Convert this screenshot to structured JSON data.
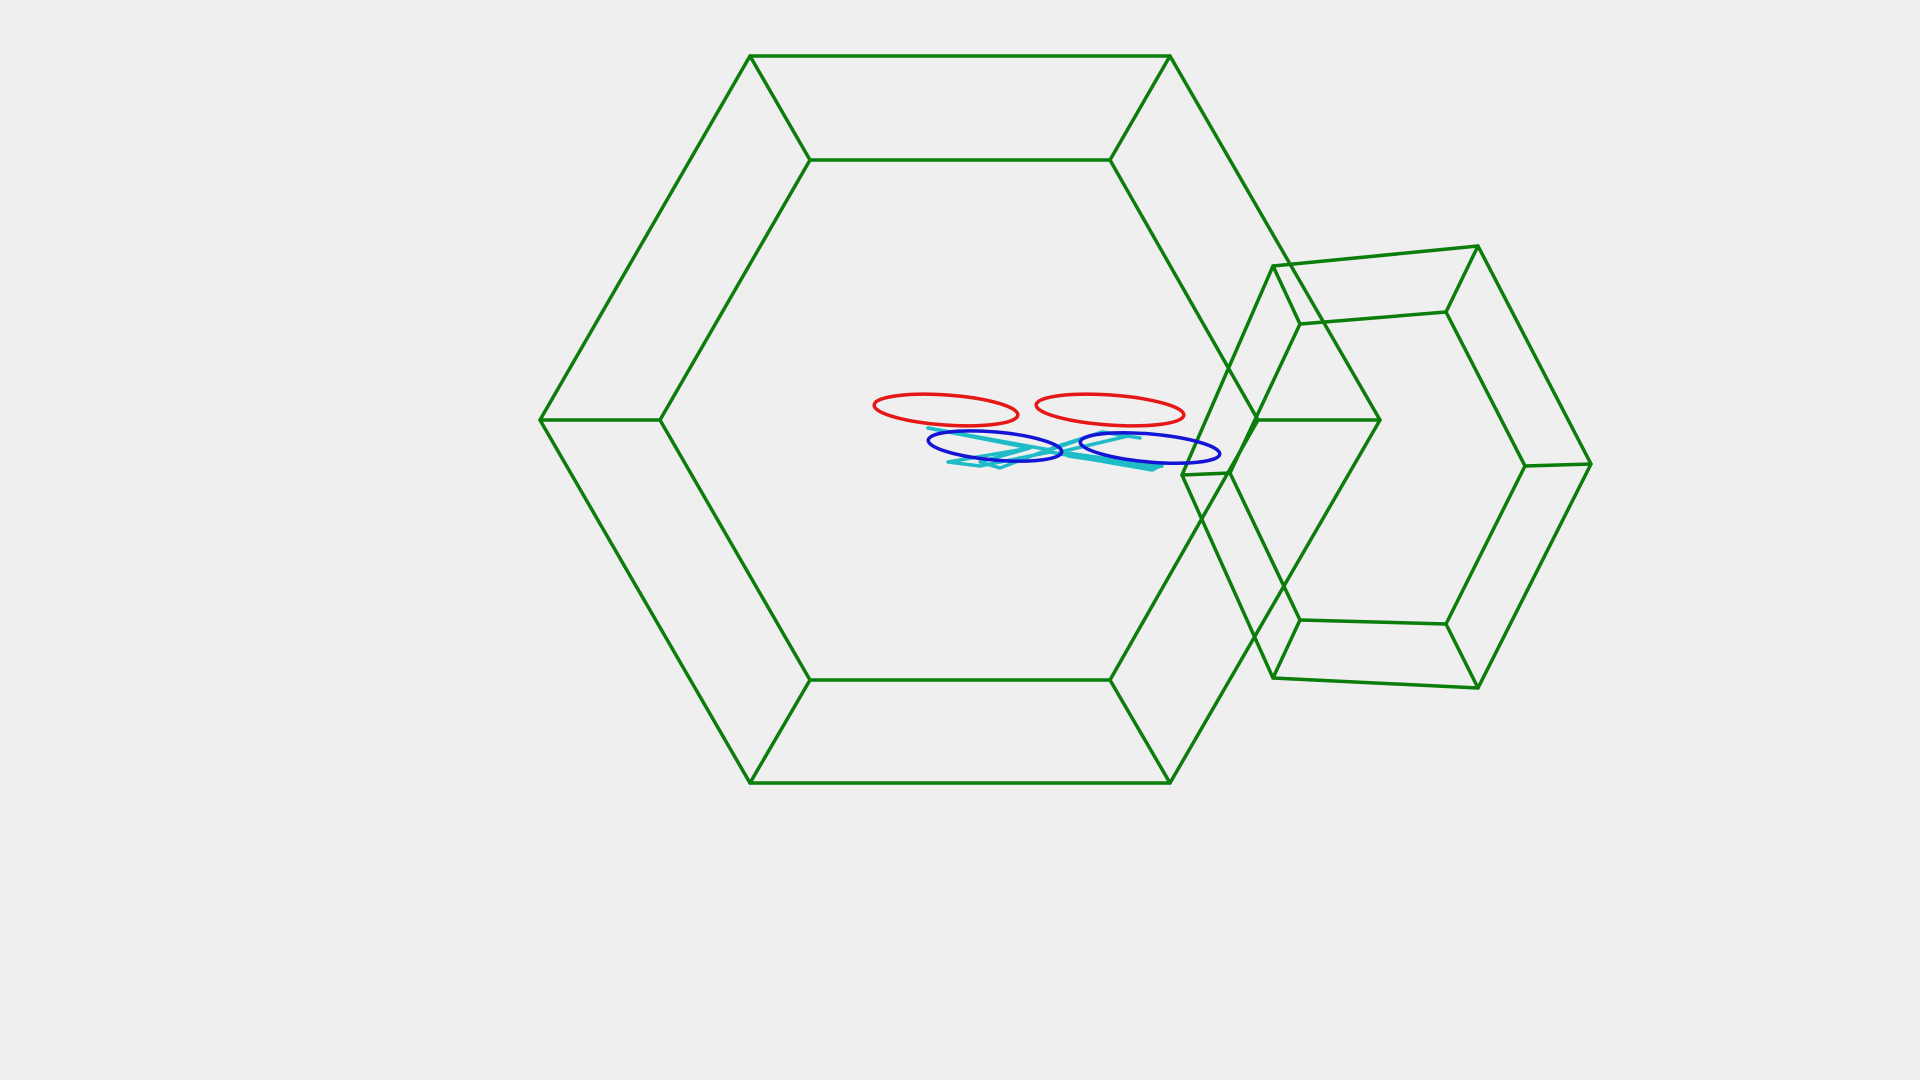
{
  "colors": {
    "background": "#efefef",
    "frame": "#0a7d0a",
    "ring_top": "#e51717",
    "ring_bottom": "#1414d6",
    "body_outline": "#1fbcc8"
  },
  "scene": {
    "description_icons": [
      "hexagonal-frame",
      "propeller-ring",
      "quadcopter-body"
    ]
  }
}
